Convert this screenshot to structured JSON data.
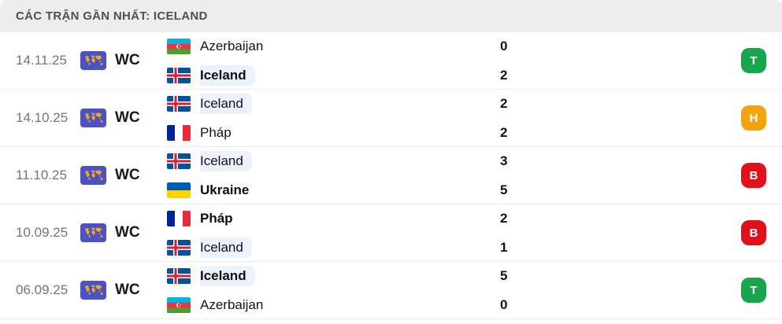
{
  "header": {
    "title": "CÁC TRẬN GẦN NHẤT: ICELAND"
  },
  "colors": {
    "win_badge": "#17a64b",
    "draw_badge": "#f2a30d",
    "loss_badge": "#e11019",
    "team_highlight_pill": "#ebf2fc",
    "competition_icon_bg": "#4c52c4",
    "competition_icon_map": "#f2a918",
    "header_bg": "#ededed"
  },
  "matches": [
    {
      "date": "14.11.25",
      "competition": "WC",
      "teams": [
        {
          "name": "Azerbaijan",
          "flag": "azerbaijan",
          "score": "0",
          "bold": false,
          "highlight": false
        },
        {
          "name": "Iceland",
          "flag": "iceland",
          "score": "2",
          "bold": true,
          "highlight": true
        }
      ],
      "result": {
        "letter": "T",
        "type": "win"
      }
    },
    {
      "date": "14.10.25",
      "competition": "WC",
      "teams": [
        {
          "name": "Iceland",
          "flag": "iceland",
          "score": "2",
          "bold": false,
          "highlight": true
        },
        {
          "name": "Pháp",
          "flag": "france",
          "score": "2",
          "bold": false,
          "highlight": false
        }
      ],
      "result": {
        "letter": "H",
        "type": "draw"
      }
    },
    {
      "date": "11.10.25",
      "competition": "WC",
      "teams": [
        {
          "name": "Iceland",
          "flag": "iceland",
          "score": "3",
          "bold": false,
          "highlight": true
        },
        {
          "name": "Ukraine",
          "flag": "ukraine",
          "score": "5",
          "bold": true,
          "highlight": false
        }
      ],
      "result": {
        "letter": "B",
        "type": "loss"
      }
    },
    {
      "date": "10.09.25",
      "competition": "WC",
      "teams": [
        {
          "name": "Pháp",
          "flag": "france",
          "score": "2",
          "bold": true,
          "highlight": false
        },
        {
          "name": "Iceland",
          "flag": "iceland",
          "score": "1",
          "bold": false,
          "highlight": true
        }
      ],
      "result": {
        "letter": "B",
        "type": "loss"
      }
    },
    {
      "date": "06.09.25",
      "competition": "WC",
      "teams": [
        {
          "name": "Iceland",
          "flag": "iceland",
          "score": "5",
          "bold": true,
          "highlight": true
        },
        {
          "name": "Azerbaijan",
          "flag": "azerbaijan",
          "score": "0",
          "bold": false,
          "highlight": false
        }
      ],
      "result": {
        "letter": "T",
        "type": "win"
      }
    }
  ]
}
